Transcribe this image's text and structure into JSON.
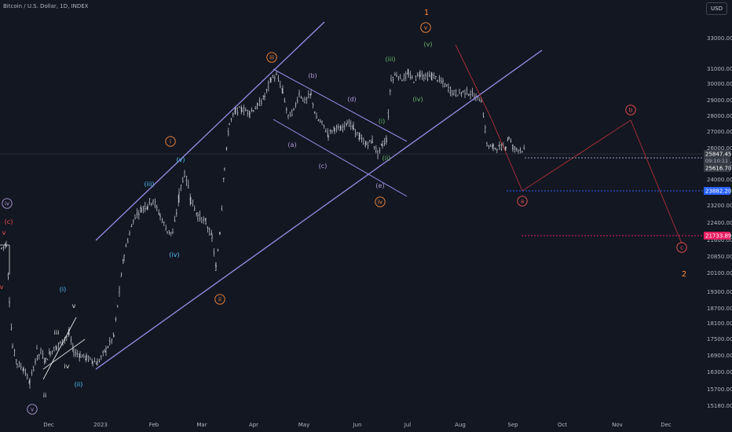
{
  "header": {
    "symbol": "Bitcoin / U.S. Dollar, 1D, INDEX",
    "currency": "USD"
  },
  "colors": {
    "background": "#131722",
    "candle": "#d1d4dc",
    "channel": "#9b8ce8",
    "axis_text": "#b2b5be",
    "orange": "#ff8c3a",
    "red": "#f05454",
    "cyan": "#4fc3f7",
    "violet": "#b39ddb",
    "green": "#66bb6a",
    "white": "#e0e0e0",
    "blue_tag": "#2962ff",
    "red_tag": "#e91e63",
    "gray_tag": "#363a45"
  },
  "chart_data": {
    "type": "candlestick",
    "ylim": [
      14800,
      34000
    ],
    "y_ticks": [
      33000,
      31000,
      30000,
      29000,
      28000,
      27000,
      26000,
      25000,
      24000,
      23200,
      22400,
      21600,
      20850,
      20100,
      19300,
      18700,
      18100,
      17500,
      16900,
      16300,
      15700,
      15180
    ],
    "y_tick_labels": [
      "33000.00",
      "31000.00",
      "30000.00",
      "29000.00",
      "28000.00",
      "27000.00",
      "26000.00",
      "25000.00",
      "24000.00",
      "23200.00",
      "22400.00",
      "21600.00",
      "20850.00",
      "20100.00",
      "19300.00",
      "18700.00",
      "18100.00",
      "17500.00",
      "16900.00",
      "16300.00",
      "15700.00",
      "15180.00"
    ],
    "x_labels": [
      "Dec",
      "2023",
      "Feb",
      "Mar",
      "Apr",
      "May",
      "Jun",
      "Jul",
      "Aug",
      "Sep",
      "Oct",
      "Nov",
      "Dec"
    ],
    "price_tags": [
      {
        "value": 25847.45,
        "label": "25847.45",
        "sub": "09:10:11",
        "style": "gray"
      },
      {
        "value": 25616.7,
        "label": "25616.70",
        "style": "gray"
      },
      {
        "value": 23882.2,
        "label": "23882.20",
        "style": "blue"
      },
      {
        "value": 21733.89,
        "label": "21733.89",
        "style": "red"
      }
    ],
    "wave_labels": [
      {
        "text": "1",
        "color": "orange",
        "circle": false,
        "size": "big"
      },
      {
        "text": "2",
        "color": "orange",
        "circle": false,
        "size": "big"
      },
      {
        "text": "v",
        "color": "orange",
        "circle": true
      },
      {
        "text": "iii",
        "color": "orange",
        "circle": true
      },
      {
        "text": "i",
        "color": "orange",
        "circle": true
      },
      {
        "text": "ii",
        "color": "orange",
        "circle": true
      },
      {
        "text": "iv",
        "color": "orange",
        "circle": true
      },
      {
        "text": "b",
        "color": "red",
        "circle": true
      },
      {
        "text": "a",
        "color": "red",
        "circle": true
      },
      {
        "text": "c",
        "color": "red",
        "circle": true
      },
      {
        "text": "iv",
        "color": "violet",
        "circle": true
      },
      {
        "text": "v",
        "color": "violet",
        "circle": true
      },
      {
        "text": "(c)",
        "color": "red",
        "circle": false
      },
      {
        "text": "v",
        "color": "red",
        "circle": false
      },
      {
        "text": "v",
        "color": "red",
        "circle": false
      },
      {
        "text": "(v)",
        "color": "cyan",
        "circle": false
      },
      {
        "text": "(iii)",
        "color": "cyan",
        "circle": false
      },
      {
        "text": "(iv)",
        "color": "cyan",
        "circle": false
      },
      {
        "text": "(i)",
        "color": "cyan",
        "circle": false
      },
      {
        "text": "(ii)",
        "color": "cyan",
        "circle": false
      },
      {
        "text": "(a)",
        "color": "violet",
        "circle": false
      },
      {
        "text": "(b)",
        "color": "violet",
        "circle": false
      },
      {
        "text": "(c)",
        "color": "violet",
        "circle": false
      },
      {
        "text": "(d)",
        "color": "violet",
        "circle": false
      },
      {
        "text": "(e)",
        "color": "violet",
        "circle": false
      },
      {
        "text": "(iii)",
        "color": "green",
        "circle": false
      },
      {
        "text": "(v)",
        "color": "green",
        "circle": false
      },
      {
        "text": "(iv)",
        "color": "green",
        "circle": false
      },
      {
        "text": "(i)",
        "color": "green",
        "circle": false
      },
      {
        "text": "(ii)",
        "color": "green",
        "circle": false
      },
      {
        "text": "i",
        "color": "white",
        "circle": false
      },
      {
        "text": "ii",
        "color": "white",
        "circle": false
      },
      {
        "text": "iii",
        "color": "white",
        "circle": false
      },
      {
        "text": "iv",
        "color": "white",
        "circle": false
      },
      {
        "text": "v",
        "color": "white",
        "circle": false
      }
    ]
  }
}
